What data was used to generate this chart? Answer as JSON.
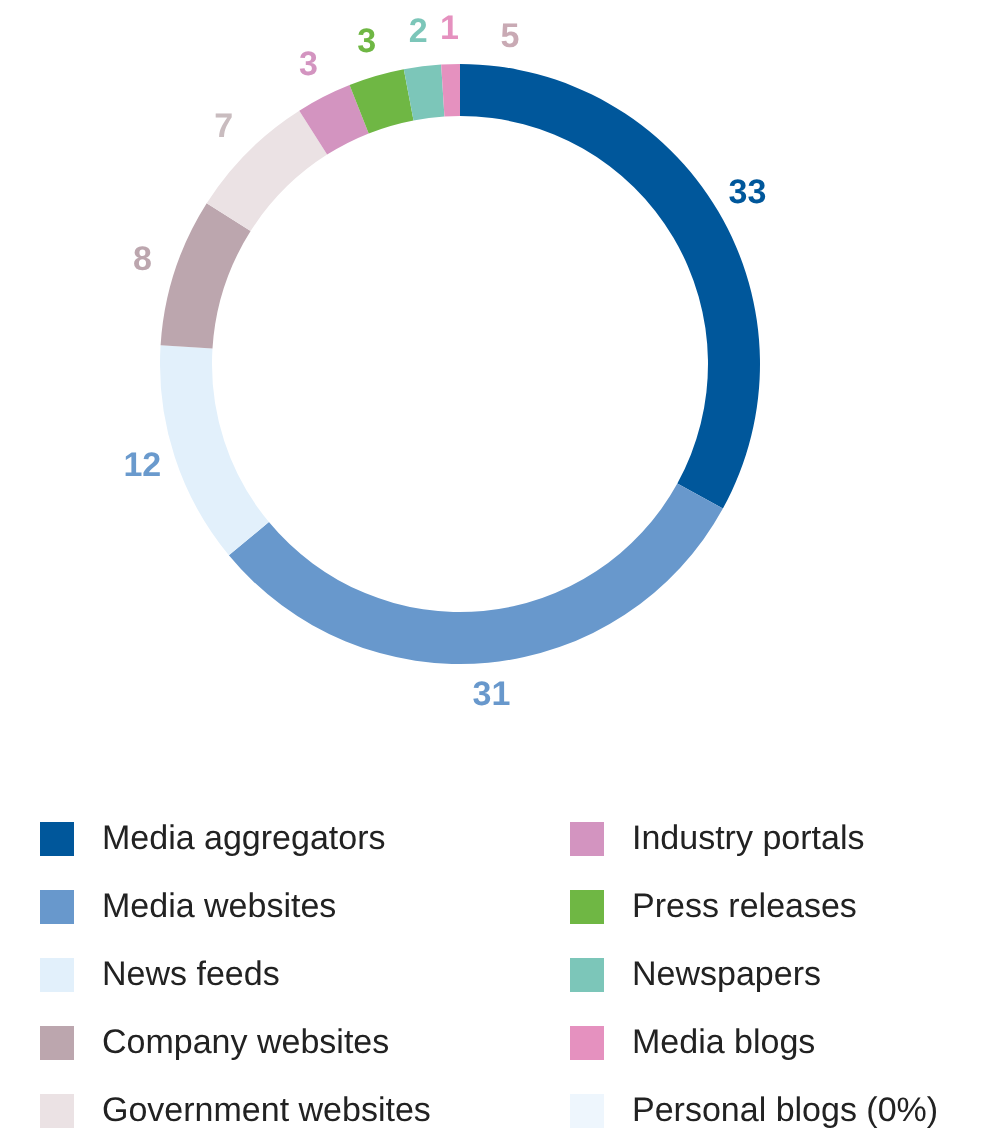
{
  "chart_data": {
    "type": "donut",
    "categories": [
      "Media aggregators",
      "Media websites",
      "News feeds",
      "Company websites",
      "Government websites",
      "Industry portals",
      "Press releases",
      "Newspapers",
      "Media blogs",
      "Personal blogs (0%)"
    ],
    "values": [
      33,
      31,
      12,
      8,
      7,
      3,
      3,
      2,
      1,
      0
    ],
    "colors": [
      "#00579b",
      "#6898cc",
      "#e2f0fb",
      "#bca6ae",
      "#ebe2e4",
      "#d394c0",
      "#6fb744",
      "#7cc6b9",
      "#e591bf",
      "#eef6fd"
    ],
    "value_labels": [
      "33",
      "31",
      "12",
      "8",
      "7",
      "3",
      "3",
      "2",
      "1",
      null
    ],
    "annotations": [
      "5"
    ],
    "legend": "bottom"
  }
}
